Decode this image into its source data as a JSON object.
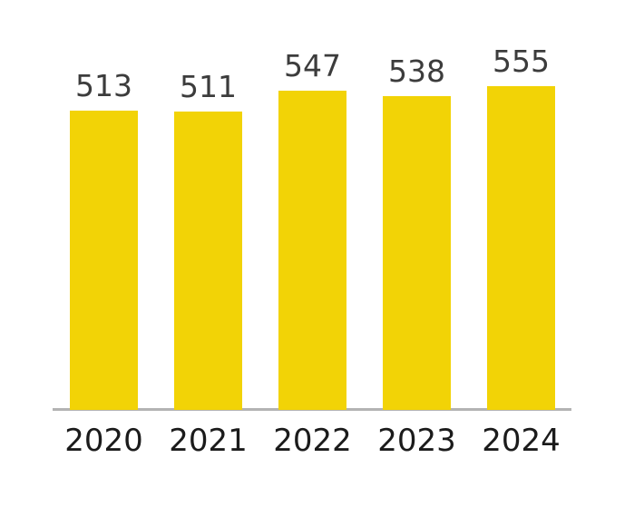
{
  "chart_data": {
    "type": "bar",
    "categories": [
      "2020",
      "2021",
      "2022",
      "2023",
      "2024"
    ],
    "values": [
      513,
      511,
      547,
      538,
      555
    ],
    "value_labels": [
      "513",
      "511",
      "547",
      "538",
      "555"
    ],
    "title": "",
    "xlabel": "",
    "ylabel": "",
    "baseline": 0,
    "grid": false,
    "legend": false,
    "value_labels_position": "above-bars",
    "colors": {
      "bar": "#F2D306",
      "value_label": "#3c3c3c",
      "category_label": "#1b1b1b",
      "axis_line": "#b3b3b3",
      "background": "#ffffff"
    }
  }
}
